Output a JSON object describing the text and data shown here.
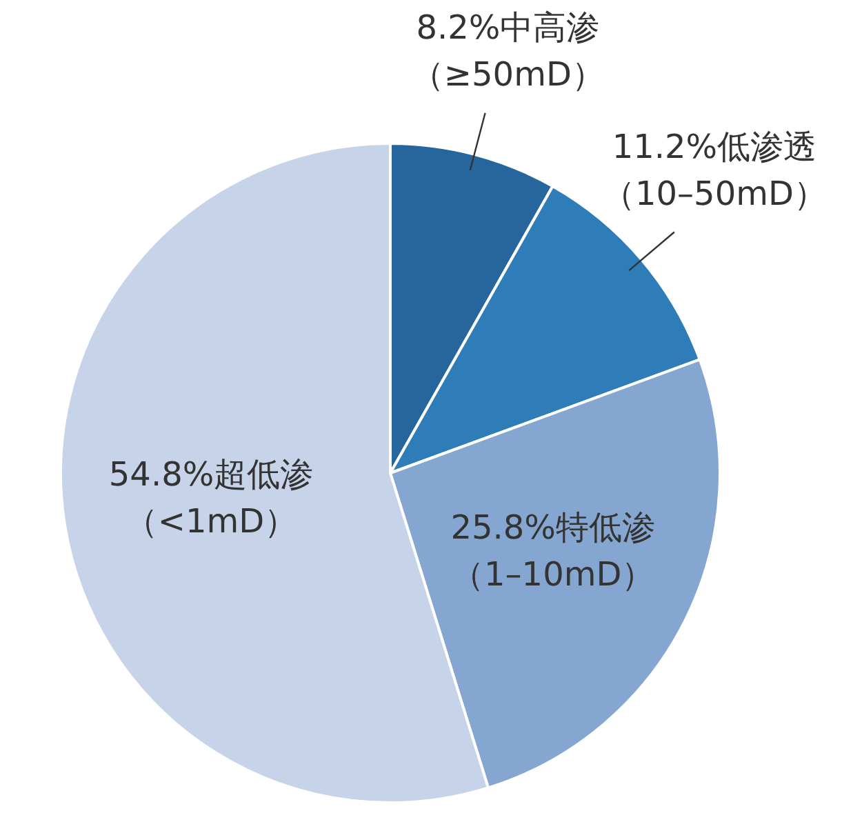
{
  "chart_data": {
    "type": "pie",
    "categories": [
      "中高渗（≥50mD）",
      "低渗透（10–50mD）",
      "特低渗（1–10mD）",
      "超低渗（<1mD）"
    ],
    "values": [
      8.2,
      11.2,
      25.8,
      54.8
    ],
    "value_labels": [
      "8.2%",
      "11.2%",
      "25.8%",
      "54.8%"
    ],
    "colors": [
      "#26669c",
      "#2e7cb8",
      "#84a6d0",
      "#c7d3e8"
    ],
    "legend": false
  }
}
